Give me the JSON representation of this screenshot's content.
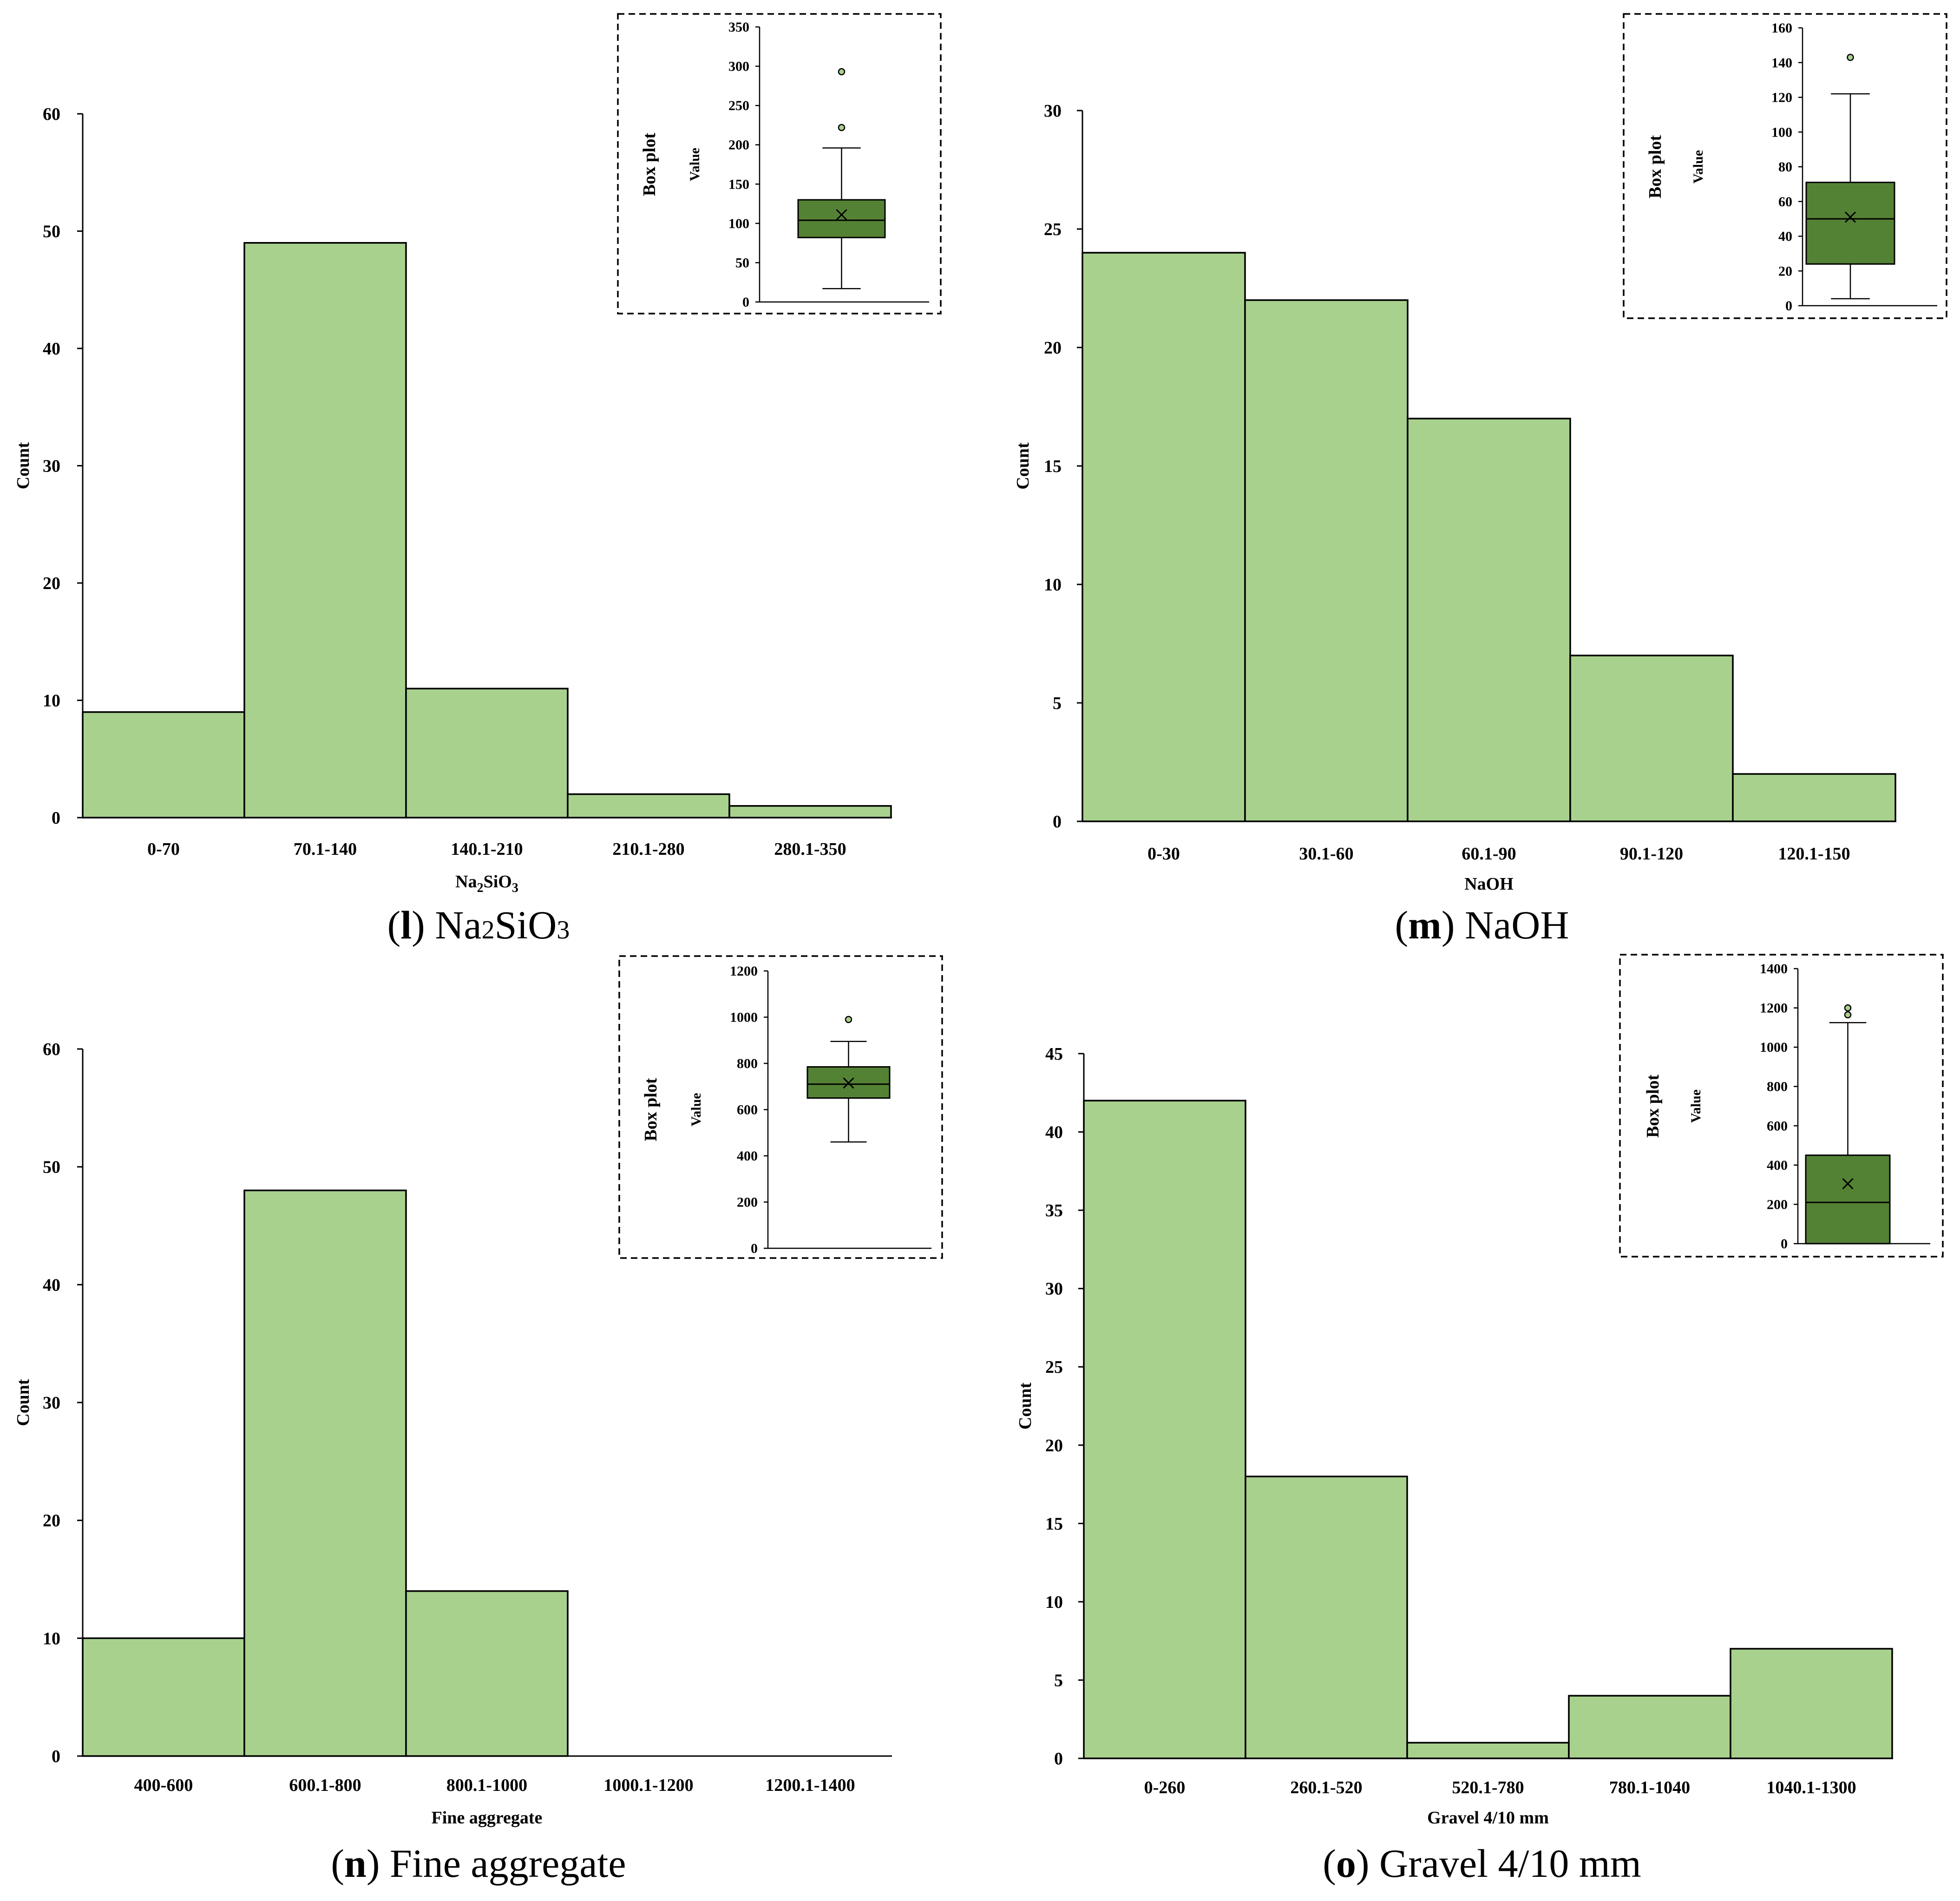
{
  "colors": {
    "bar_fill": "#a9d18e",
    "box_fill": "#548235",
    "outlier_fill": "#a9d18e",
    "stroke": "#000000"
  },
  "chart_data": [
    {
      "id": "l",
      "type": "bar",
      "title": "Na2SiO3",
      "caption": {
        "letter": "l",
        "text": ") Na2SiO3",
        "open": "("
      },
      "categories": [
        "0-70",
        "70.1-140",
        "140.1-210",
        "210.1-280",
        "280.1-350"
      ],
      "values": [
        9,
        49,
        11,
        2,
        1
      ],
      "ylabel": "Count",
      "xlabel": {
        "base": "Na",
        "sub1": "2",
        "mid": "SiO",
        "sub2": "3"
      },
      "ylim": [
        0,
        60
      ],
      "yticks": [
        0,
        10,
        20,
        30,
        40,
        50,
        60
      ],
      "boxplot": {
        "title": "Box plot",
        "ylabel": "Value",
        "ylim": [
          0,
          350
        ],
        "yticks": [
          0,
          50,
          100,
          150,
          200,
          250,
          300,
          350
        ],
        "whisker_low": 17,
        "q1": 82,
        "median": 104,
        "q3": 130,
        "whisker_high": 196,
        "mean": 111,
        "outliers": [
          222,
          293
        ]
      }
    },
    {
      "id": "m",
      "type": "bar",
      "title": "NaOH",
      "caption": {
        "letter": "m",
        "text": ") NaOH",
        "open": "("
      },
      "categories": [
        "0-30",
        "30.1-60",
        "60.1-90",
        "90.1-120",
        "120.1-150"
      ],
      "values": [
        24,
        22,
        17,
        7,
        2
      ],
      "ylabel": "Count",
      "xlabel": {
        "base": "NaOH"
      },
      "ylim": [
        0,
        30
      ],
      "yticks": [
        0,
        5,
        10,
        15,
        20,
        25,
        30
      ],
      "boxplot": {
        "title": "Box plot",
        "ylabel": "Value",
        "ylim": [
          0,
          160
        ],
        "yticks": [
          0,
          20,
          40,
          60,
          80,
          100,
          120,
          140,
          160
        ],
        "whisker_low": 4,
        "q1": 24,
        "median": 50,
        "q3": 71,
        "whisker_high": 122,
        "mean": 51,
        "outliers": [
          143
        ]
      }
    },
    {
      "id": "n",
      "type": "bar",
      "title": "Fine aggregate",
      "caption": {
        "letter": "n",
        "text": ") Fine aggregate",
        "open": "("
      },
      "categories": [
        "400-600",
        "600.1-800",
        "800.1-1000",
        "1000.1-1200",
        "1200.1-1400"
      ],
      "values": [
        10,
        48,
        14,
        0,
        0
      ],
      "ylabel": "Count",
      "xlabel": {
        "base": "Fine aggregate"
      },
      "ylim": [
        0,
        60
      ],
      "yticks": [
        0,
        10,
        20,
        30,
        40,
        50,
        60
      ],
      "boxplot": {
        "title": "Box plot",
        "ylabel": "Value",
        "ylim": [
          0,
          1200
        ],
        "yticks": [
          0,
          200,
          400,
          600,
          800,
          1000,
          1200
        ],
        "whisker_low": 460,
        "q1": 650,
        "median": 710,
        "q3": 785,
        "whisker_high": 895,
        "mean": 715,
        "outliers": [
          990
        ]
      }
    },
    {
      "id": "o",
      "type": "bar",
      "title": "Gravel 4/10 mm",
      "caption": {
        "letter": "o",
        "text": ") Gravel 4/10 mm",
        "open": "("
      },
      "categories": [
        "0-260",
        "260.1-520",
        "520.1-780",
        "780.1-1040",
        "1040.1-1300"
      ],
      "values": [
        42,
        18,
        1,
        4,
        7
      ],
      "ylabel": "Count",
      "xlabel": {
        "base": "Gravel 4/10 mm"
      },
      "ylim": [
        0,
        45
      ],
      "yticks": [
        0,
        5,
        10,
        15,
        20,
        25,
        30,
        35,
        40,
        45
      ],
      "boxplot": {
        "title": "Box plot",
        "ylabel": "Value",
        "ylim": [
          0,
          1400
        ],
        "yticks": [
          0,
          200,
          400,
          600,
          800,
          1000,
          1200,
          1400
        ],
        "whisker_low": 0,
        "q1": 0,
        "median": 210,
        "q3": 450,
        "whisker_high": 1125,
        "mean": 305,
        "outliers": [
          1165,
          1200
        ]
      }
    }
  ]
}
